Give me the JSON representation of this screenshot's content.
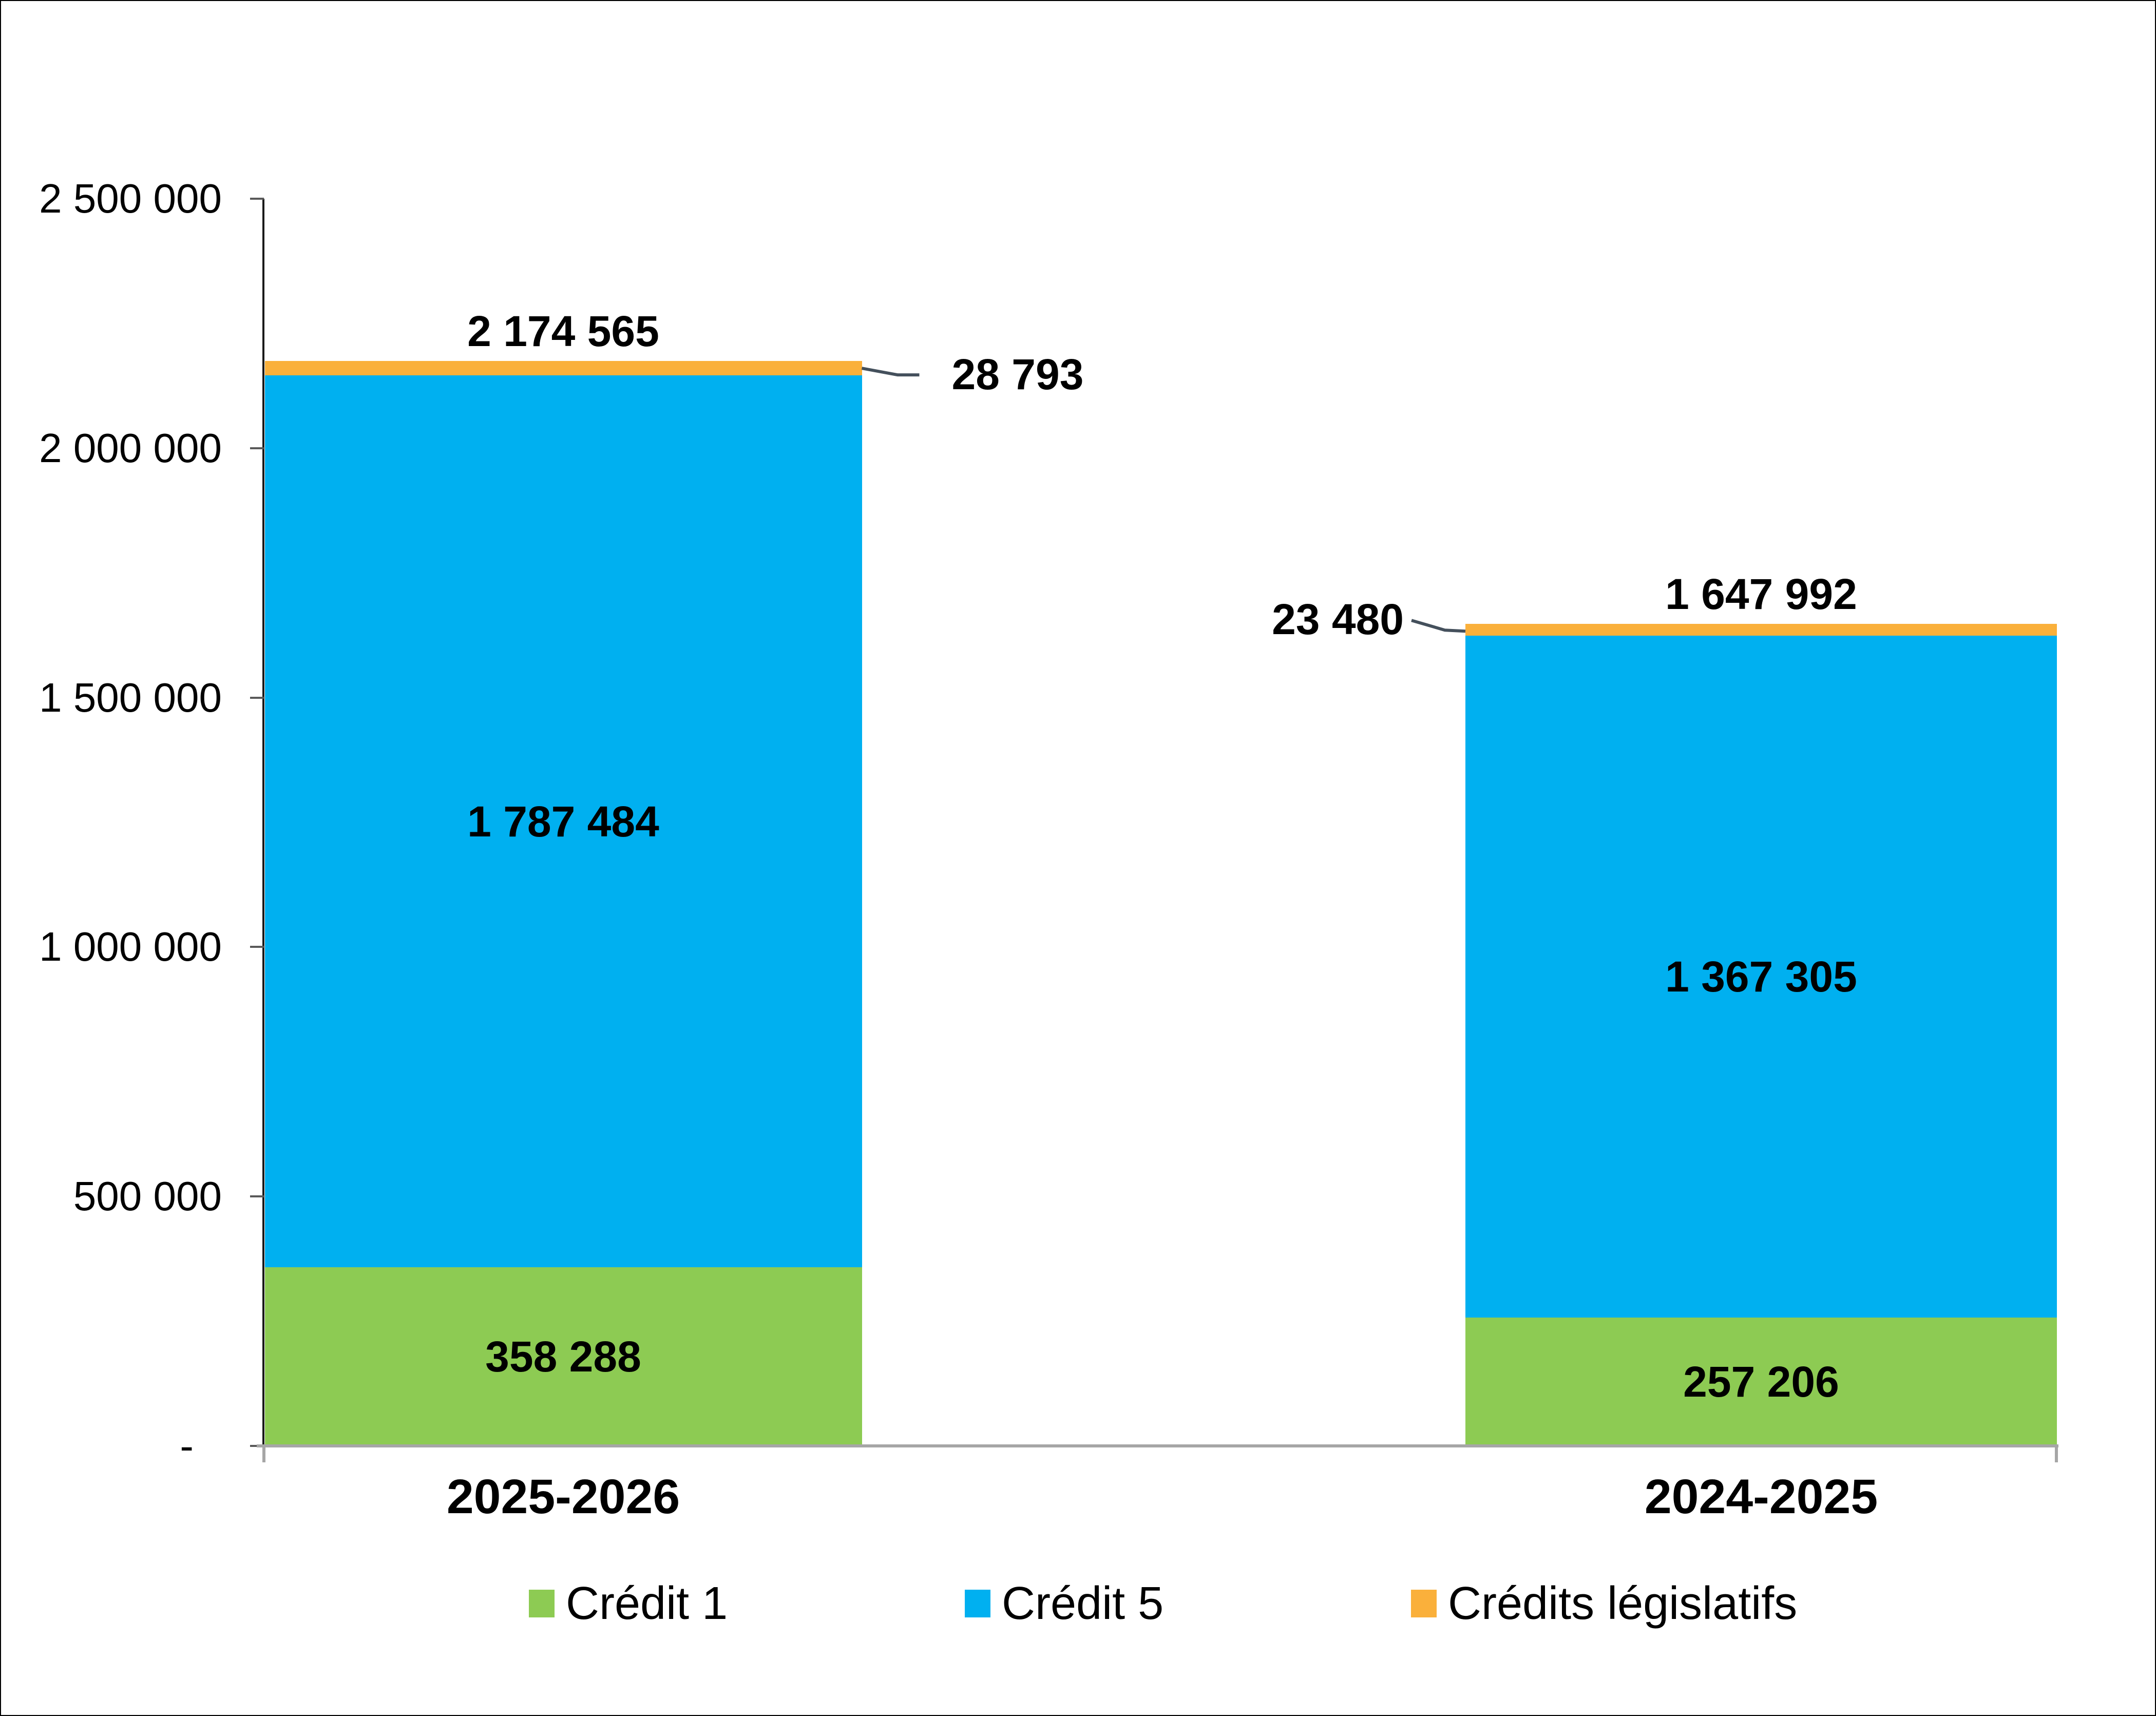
{
  "chart_data": {
    "type": "bar",
    "stacked": true,
    "title": "",
    "categories": [
      "2025-2026",
      "2024-2025"
    ],
    "series": [
      {
        "name": "Crédit 1",
        "color": "#8DCB53",
        "values": [
          358288,
          257206
        ],
        "value_labels": [
          "358 288",
          "257 206"
        ]
      },
      {
        "name": "Crédit 5",
        "color": "#00B0F0",
        "values": [
          1787484,
          1367305
        ],
        "value_labels": [
          "1 787 484",
          "1 367 305"
        ]
      },
      {
        "name": "Crédits législatifs",
        "color": "#FAB03B",
        "values": [
          28793,
          23480
        ],
        "value_labels": [
          "28 793",
          "23 480"
        ]
      }
    ],
    "totals": {
      "values": [
        2174565,
        1647992
      ],
      "labels": [
        "2 174 565",
        "1 647 992"
      ]
    },
    "y_axis": {
      "min": 0,
      "max": 2500000,
      "tick_interval": 500000,
      "tick_values": [
        2500000,
        2000000,
        1500000,
        1000000,
        500000,
        0
      ],
      "tick_labels": [
        "2 500 000",
        "2 000 000",
        "1 500 000",
        "1 000 000",
        "500 000",
        "-"
      ]
    },
    "legend": {
      "position": "bottom",
      "entries": [
        "Crédit 1",
        "Crédit 5",
        "Crédits législatifs"
      ]
    },
    "grid": "off",
    "colors": {
      "value_axis_line": "#1a1a1a",
      "tick_mark": "#595959",
      "category_axis_line": "#A6A6A6",
      "leader_line": "#44505C",
      "text": "#000000",
      "background": "#FFFFFF"
    }
  }
}
